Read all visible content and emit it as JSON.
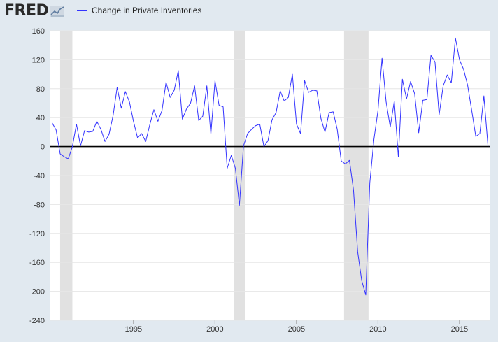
{
  "header": {
    "logo_text": "FRED",
    "logo_icon": "line-chart-icon"
  },
  "chart_data": {
    "type": "line",
    "series": [
      {
        "name": "Change in Private Inventories",
        "color": "#3333ff",
        "points": [
          [
            1990.0,
            33
          ],
          [
            1990.25,
            23
          ],
          [
            1990.5,
            -10
          ],
          [
            1990.75,
            -14
          ],
          [
            1991.0,
            -17
          ],
          [
            1991.25,
            0
          ],
          [
            1991.5,
            31
          ],
          [
            1991.75,
            1
          ],
          [
            1992.0,
            22
          ],
          [
            1992.25,
            20
          ],
          [
            1992.5,
            21
          ],
          [
            1992.75,
            35
          ],
          [
            1993.0,
            24
          ],
          [
            1993.25,
            7
          ],
          [
            1993.5,
            17
          ],
          [
            1993.75,
            43
          ],
          [
            1994.0,
            82
          ],
          [
            1994.25,
            53
          ],
          [
            1994.5,
            76
          ],
          [
            1994.75,
            62
          ],
          [
            1995.0,
            35
          ],
          [
            1995.25,
            12
          ],
          [
            1995.5,
            18
          ],
          [
            1995.75,
            7
          ],
          [
            1996.0,
            30
          ],
          [
            1996.25,
            51
          ],
          [
            1996.5,
            35
          ],
          [
            1996.75,
            50
          ],
          [
            1997.0,
            89
          ],
          [
            1997.25,
            68
          ],
          [
            1997.5,
            78
          ],
          [
            1997.75,
            105
          ],
          [
            1998.0,
            38
          ],
          [
            1998.25,
            52
          ],
          [
            1998.5,
            60
          ],
          [
            1998.75,
            84
          ],
          [
            1999.0,
            36
          ],
          [
            1999.25,
            42
          ],
          [
            1999.5,
            84
          ],
          [
            1999.75,
            17
          ],
          [
            2000.0,
            91
          ],
          [
            2000.25,
            57
          ],
          [
            2000.5,
            55
          ],
          [
            2000.75,
            -30
          ],
          [
            2001.0,
            -12
          ],
          [
            2001.25,
            -30
          ],
          [
            2001.5,
            -81
          ],
          [
            2001.75,
            1
          ],
          [
            2002.0,
            18
          ],
          [
            2002.25,
            24
          ],
          [
            2002.5,
            29
          ],
          [
            2002.75,
            31
          ],
          [
            2003.0,
            0
          ],
          [
            2003.25,
            8
          ],
          [
            2003.5,
            37
          ],
          [
            2003.75,
            47
          ],
          [
            2004.0,
            77
          ],
          [
            2004.25,
            63
          ],
          [
            2004.5,
            68
          ],
          [
            2004.75,
            100
          ],
          [
            2005.0,
            31
          ],
          [
            2005.25,
            18
          ],
          [
            2005.5,
            91
          ],
          [
            2005.75,
            75
          ],
          [
            2006.0,
            78
          ],
          [
            2006.25,
            77
          ],
          [
            2006.5,
            39
          ],
          [
            2006.75,
            20
          ],
          [
            2007.0,
            47
          ],
          [
            2007.25,
            48
          ],
          [
            2007.5,
            24
          ],
          [
            2007.75,
            -20
          ],
          [
            2008.0,
            -24
          ],
          [
            2008.25,
            -19
          ],
          [
            2008.5,
            -60
          ],
          [
            2008.75,
            -145
          ],
          [
            2009.0,
            -185
          ],
          [
            2009.25,
            -205
          ],
          [
            2009.5,
            -50
          ],
          [
            2009.75,
            10
          ],
          [
            2010.0,
            50
          ],
          [
            2010.25,
            122
          ],
          [
            2010.5,
            62
          ],
          [
            2010.75,
            27
          ],
          [
            2011.0,
            63
          ],
          [
            2011.25,
            -14
          ],
          [
            2011.5,
            93
          ],
          [
            2011.75,
            66
          ],
          [
            2012.0,
            90
          ],
          [
            2012.25,
            73
          ],
          [
            2012.5,
            19
          ],
          [
            2012.75,
            64
          ],
          [
            2013.0,
            65
          ],
          [
            2013.25,
            126
          ],
          [
            2013.5,
            117
          ],
          [
            2013.75,
            44
          ],
          [
            2014.0,
            84
          ],
          [
            2014.25,
            99
          ],
          [
            2014.5,
            88
          ],
          [
            2014.75,
            150
          ],
          [
            2015.0,
            120
          ],
          [
            2015.25,
            107
          ],
          [
            2015.5,
            85
          ],
          [
            2015.75,
            50
          ],
          [
            2016.0,
            14
          ],
          [
            2016.25,
            18
          ],
          [
            2016.5,
            70
          ],
          [
            2016.75,
            0
          ]
        ]
      }
    ],
    "x_ticks": [
      "1995",
      "2000",
      "2005",
      "2010",
      "2015"
    ],
    "y_ticks": [
      "160",
      "120",
      "80",
      "40",
      "0",
      "-40",
      "-80",
      "-120",
      "-160",
      "-200",
      "-240"
    ],
    "xlim": [
      1989.9,
      2016.85
    ],
    "ylim": [
      -240,
      160
    ],
    "recessions": [
      [
        1990.5,
        1991.25
      ],
      [
        2001.17,
        2001.83
      ],
      [
        2007.92,
        2009.42
      ]
    ],
    "recession_color": "#e1e1e1",
    "zero_line_color": "#000000",
    "grid": true,
    "legend_position": "top-left"
  }
}
